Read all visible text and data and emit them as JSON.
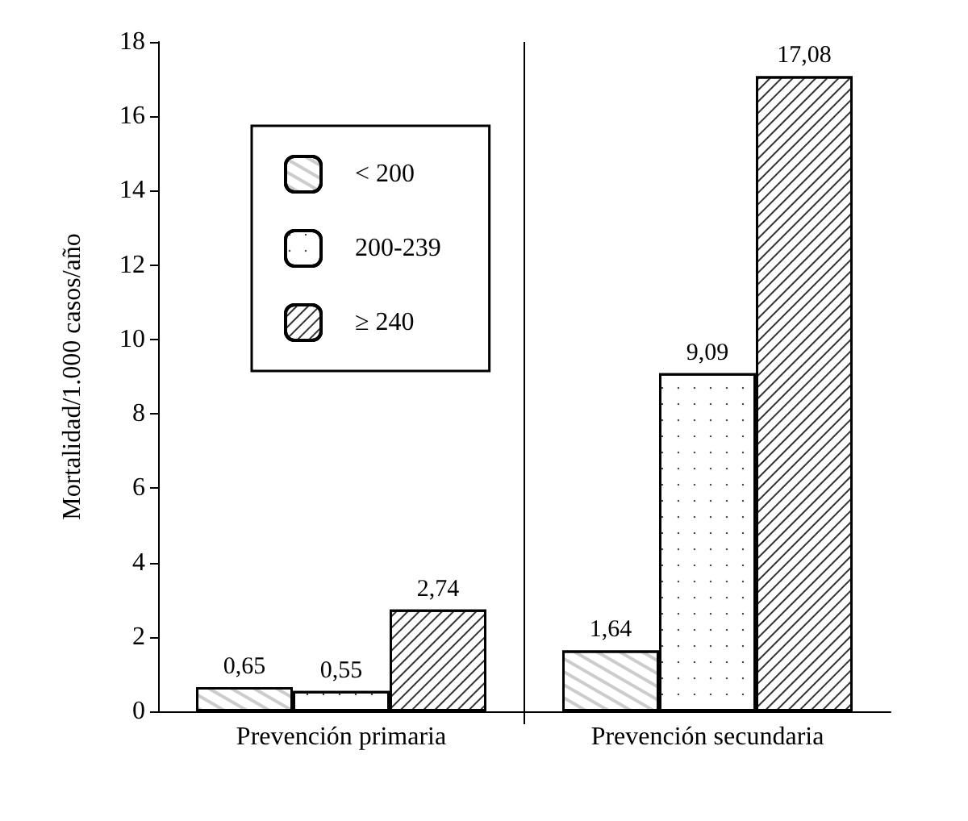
{
  "chart_data": {
    "type": "bar",
    "ylabel": "Mortalidad/1.000 casos/año",
    "categories": [
      "Prevención primaria",
      "Prevención secundaria"
    ],
    "series": [
      {
        "name": "< 200",
        "color": "#ffffff",
        "values": [
          0.65,
          1.64
        ],
        "value_labels": [
          "0,65",
          "1,64"
        ]
      },
      {
        "name": "200-239",
        "color": "#ffffff",
        "values": [
          0.55,
          9.09
        ],
        "value_labels": [
          "0,55",
          "9,09"
        ]
      },
      {
        "name": "≥ 240",
        "color": "#ffffff",
        "values": [
          2.74,
          17.08
        ],
        "value_labels": [
          "2,74",
          "17,08"
        ]
      }
    ],
    "ylim": [
      0,
      18
    ],
    "yticks": [
      0,
      2,
      4,
      6,
      8,
      10,
      12,
      14,
      16,
      18
    ],
    "grid": "x",
    "legend": "top left"
  }
}
